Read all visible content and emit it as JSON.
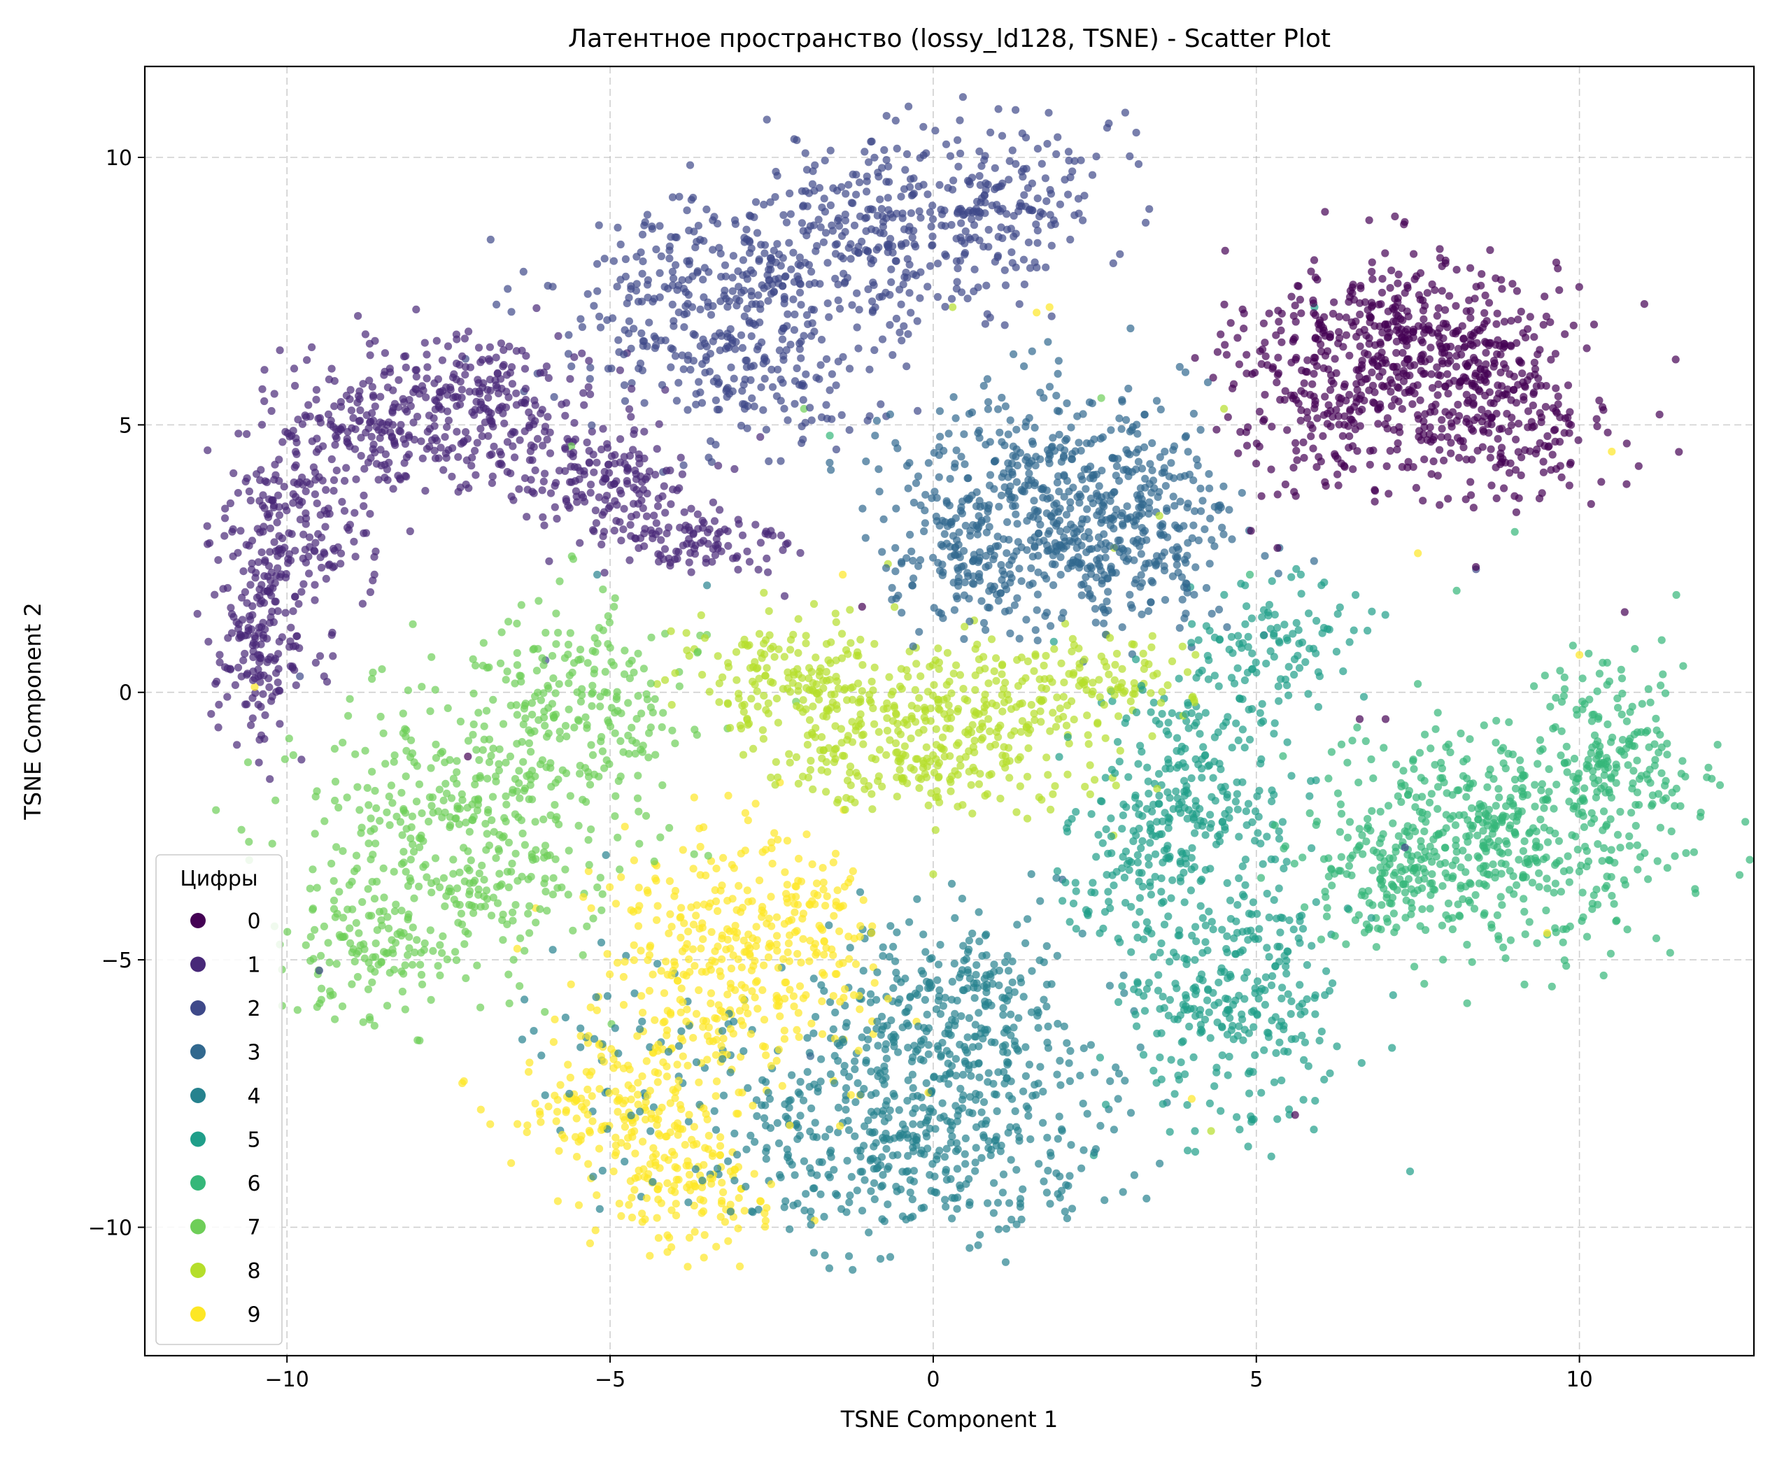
{
  "chart_data": {
    "type": "scatter",
    "title": "Латентное пространство (lossy_ld128, TSNE) - Scatter Plot",
    "xlabel": "TSNE Component 1",
    "ylabel": "TSNE Component 2",
    "xlim": [
      -12.2,
      12.7
    ],
    "ylim": [
      -12.4,
      11.7
    ],
    "xticks": [
      -10,
      -5,
      0,
      5,
      10
    ],
    "xtick_labels": [
      "−10",
      "−5",
      "0",
      "5",
      "10"
    ],
    "yticks": [
      -10,
      -5,
      0,
      5,
      10
    ],
    "ytick_labels": [
      "−10",
      "−5",
      "0",
      "5",
      "10"
    ],
    "grid": true,
    "legend_position": "lower-left",
    "legend_title": "Цифры",
    "marker_opacity": 0.7,
    "series": [
      {
        "name": "0",
        "color": "#440154",
        "clusters": [
          {
            "cx": 7.3,
            "cy": 6.6,
            "sx": 1.15,
            "sy": 0.85,
            "n": 380
          },
          {
            "cx": 8.6,
            "cy": 5.3,
            "sx": 1.0,
            "sy": 0.9,
            "n": 300
          },
          {
            "cx": 6.0,
            "cy": 5.5,
            "sx": 0.7,
            "sy": 1.0,
            "n": 160
          }
        ]
      },
      {
        "name": "1",
        "color": "#482878",
        "clusters": [
          {
            "cx": -10.4,
            "cy": 0.8,
            "sx": 0.35,
            "sy": 0.9,
            "n": 160
          },
          {
            "cx": -9.9,
            "cy": 3.0,
            "sx": 0.6,
            "sy": 0.9,
            "n": 180
          },
          {
            "cx": -8.6,
            "cy": 5.0,
            "sx": 0.9,
            "sy": 0.65,
            "n": 210
          },
          {
            "cx": -6.9,
            "cy": 5.4,
            "sx": 0.9,
            "sy": 0.65,
            "n": 200
          },
          {
            "cx": -5.2,
            "cy": 4.0,
            "sx": 0.8,
            "sy": 0.55,
            "n": 170
          },
          {
            "cx": -3.7,
            "cy": 2.8,
            "sx": 0.7,
            "sy": 0.35,
            "n": 110
          }
        ]
      },
      {
        "name": "2",
        "color": "#3e4989",
        "clusters": [
          {
            "cx": -3.6,
            "cy": 7.2,
            "sx": 1.2,
            "sy": 0.95,
            "n": 310
          },
          {
            "cx": -1.0,
            "cy": 8.4,
            "sx": 1.2,
            "sy": 0.9,
            "n": 300
          },
          {
            "cx": 1.0,
            "cy": 9.3,
            "sx": 0.9,
            "sy": 0.75,
            "n": 180
          },
          {
            "cx": -2.6,
            "cy": 5.6,
            "sx": 0.9,
            "sy": 0.7,
            "n": 90
          }
        ]
      },
      {
        "name": "3",
        "color": "#31688e",
        "clusters": [
          {
            "cx": 1.6,
            "cy": 3.8,
            "sx": 1.15,
            "sy": 1.0,
            "n": 430
          },
          {
            "cx": 3.1,
            "cy": 2.8,
            "sx": 0.95,
            "sy": 0.8,
            "n": 260
          },
          {
            "cx": 0.7,
            "cy": 2.2,
            "sx": 0.7,
            "sy": 0.5,
            "n": 100
          }
        ]
      },
      {
        "name": "4",
        "color": "#26828e",
        "clusters": [
          {
            "cx": 0.3,
            "cy": -7.8,
            "sx": 1.25,
            "sy": 1.1,
            "n": 430
          },
          {
            "cx": 0.4,
            "cy": -5.6,
            "sx": 1.0,
            "sy": 0.8,
            "n": 200
          },
          {
            "cx": -1.8,
            "cy": -8.4,
            "sx": 0.9,
            "sy": 0.9,
            "n": 150
          },
          {
            "cx": -4.4,
            "cy": -6.8,
            "sx": 1.0,
            "sy": 1.2,
            "n": 70
          }
        ]
      },
      {
        "name": "5",
        "color": "#1f9e89",
        "clusters": [
          {
            "cx": 4.1,
            "cy": -2.0,
            "sx": 0.75,
            "sy": 1.2,
            "n": 260
          },
          {
            "cx": 4.7,
            "cy": -5.8,
            "sx": 0.85,
            "sy": 1.2,
            "n": 290
          },
          {
            "cx": 5.3,
            "cy": 0.9,
            "sx": 0.65,
            "sy": 0.6,
            "n": 110
          },
          {
            "cx": 3.0,
            "cy": -3.4,
            "sx": 0.55,
            "sy": 0.8,
            "n": 90
          }
        ]
      },
      {
        "name": "6",
        "color": "#35b779",
        "clusters": [
          {
            "cx": 8.7,
            "cy": -2.7,
            "sx": 1.35,
            "sy": 1.05,
            "n": 520
          },
          {
            "cx": 10.6,
            "cy": -1.0,
            "sx": 0.6,
            "sy": 0.8,
            "n": 140
          },
          {
            "cx": 6.9,
            "cy": -3.6,
            "sx": 0.7,
            "sy": 0.6,
            "n": 110
          }
        ]
      },
      {
        "name": "7",
        "color": "#6ece58",
        "clusters": [
          {
            "cx": -7.3,
            "cy": -2.6,
            "sx": 1.3,
            "sy": 1.3,
            "n": 430
          },
          {
            "cx": -5.4,
            "cy": -0.2,
            "sx": 0.9,
            "sy": 0.9,
            "n": 200
          },
          {
            "cx": -8.7,
            "cy": -5.0,
            "sx": 0.6,
            "sy": 0.6,
            "n": 110
          }
        ]
      },
      {
        "name": "8",
        "color": "#b5de2b",
        "clusters": [
          {
            "cx": -0.2,
            "cy": -0.6,
            "sx": 1.35,
            "sy": 0.75,
            "n": 440
          },
          {
            "cx": -2.4,
            "cy": 0.4,
            "sx": 0.7,
            "sy": 0.5,
            "n": 120
          },
          {
            "cx": 2.7,
            "cy": 0.2,
            "sx": 0.7,
            "sy": 0.45,
            "n": 90
          }
        ]
      },
      {
        "name": "9",
        "color": "#fde725",
        "clusters": [
          {
            "cx": -3.4,
            "cy": -5.2,
            "sx": 1.0,
            "sy": 1.3,
            "n": 320
          },
          {
            "cx": -4.9,
            "cy": -8.0,
            "sx": 0.8,
            "sy": 0.8,
            "n": 170
          },
          {
            "cx": -3.7,
            "cy": -9.3,
            "sx": 0.6,
            "sy": 0.6,
            "n": 120
          },
          {
            "cx": -2.0,
            "cy": -4.2,
            "sx": 0.6,
            "sy": 0.9,
            "n": 110
          }
        ]
      }
    ],
    "stray_points": [
      {
        "x": 5.9,
        "y": 7.2,
        "series": "5"
      },
      {
        "x": 10.5,
        "y": 4.5,
        "series": "9"
      },
      {
        "x": 7.5,
        "y": 2.6,
        "series": "9"
      },
      {
        "x": -1.6,
        "y": 4.8,
        "series": "6"
      },
      {
        "x": 2.6,
        "y": 5.5,
        "series": "7"
      },
      {
        "x": 4.5,
        "y": 5.3,
        "series": "8"
      },
      {
        "x": 4.9,
        "y": 2.2,
        "series": "6"
      },
      {
        "x": 8.4,
        "y": 2.3,
        "series": "2"
      },
      {
        "x": 10.7,
        "y": 1.5,
        "series": "0"
      },
      {
        "x": 6.6,
        "y": -0.5,
        "series": "0"
      },
      {
        "x": 7.0,
        "y": -0.5,
        "series": "0"
      },
      {
        "x": 9.0,
        "y": 3.0,
        "series": "6"
      },
      {
        "x": 10.0,
        "y": 0.7,
        "series": "9"
      },
      {
        "x": 9.5,
        "y": -4.5,
        "series": "9"
      },
      {
        "x": 7.3,
        "y": -2.9,
        "series": "2"
      },
      {
        "x": -7.2,
        "y": -1.2,
        "series": "0"
      },
      {
        "x": -10.5,
        "y": 0.1,
        "series": "9"
      },
      {
        "x": -9.5,
        "y": -5.2,
        "series": "2"
      },
      {
        "x": -7.0,
        "y": -7.8,
        "series": "9"
      },
      {
        "x": -9.8,
        "y": 0.3,
        "series": "2"
      },
      {
        "x": -6.0,
        "y": 0.6,
        "series": "2"
      },
      {
        "x": -5.2,
        "y": 2.2,
        "series": "4"
      },
      {
        "x": -3.5,
        "y": 2.0,
        "series": "4"
      },
      {
        "x": -2.3,
        "y": 1.8,
        "series": "1"
      },
      {
        "x": -1.1,
        "y": 1.6,
        "series": "0"
      },
      {
        "x": -5.6,
        "y": 4.6,
        "series": "7"
      },
      {
        "x": -2.0,
        "y": 5.3,
        "series": "7"
      },
      {
        "x": 0.3,
        "y": 7.2,
        "series": "8"
      },
      {
        "x": 1.6,
        "y": 7.1,
        "series": "9"
      },
      {
        "x": 1.8,
        "y": 7.2,
        "series": "9"
      },
      {
        "x": -1.4,
        "y": 2.2,
        "series": "9"
      },
      {
        "x": 0.0,
        "y": -3.4,
        "series": "8"
      },
      {
        "x": 2.0,
        "y": -3.5,
        "series": "3"
      },
      {
        "x": 2.8,
        "y": 2.7,
        "series": "8"
      },
      {
        "x": 3.5,
        "y": 3.3,
        "series": "8"
      },
      {
        "x": 4.0,
        "y": -7.6,
        "series": "9"
      },
      {
        "x": 5.6,
        "y": -7.9,
        "series": "0"
      },
      {
        "x": 4.3,
        "y": -8.2,
        "series": "8"
      },
      {
        "x": -1.9,
        "y": -6.8,
        "series": "3"
      },
      {
        "x": -4.5,
        "y": -9.9,
        "series": "9"
      },
      {
        "x": -0.9,
        "y": 4.8,
        "series": "3"
      },
      {
        "x": -0.7,
        "y": 2.4,
        "series": "8"
      },
      {
        "x": 8.1,
        "y": 1.9,
        "series": "6"
      }
    ]
  }
}
